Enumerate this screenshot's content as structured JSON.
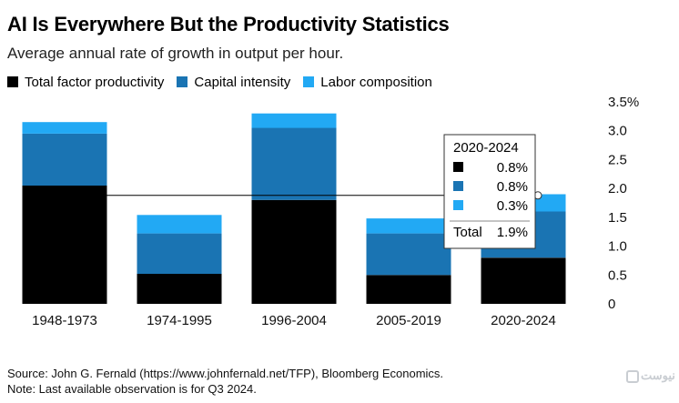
{
  "header": {
    "title": "AI Is Everywhere But the Productivity Statistics",
    "subtitle": "Average annual rate of growth in output per hour."
  },
  "colors": {
    "tfp": "#000000",
    "capital": "#1a74b3",
    "labor": "#22a9f4",
    "refline": "#000000"
  },
  "chart_data": {
    "type": "bar",
    "stacked": true,
    "categories": [
      "1948-1973",
      "1974-1995",
      "1996-2004",
      "2005-2019",
      "2020-2024"
    ],
    "series": [
      {
        "name": "Total factor productivity",
        "values": [
          2.05,
          0.52,
          1.8,
          0.5,
          0.8
        ]
      },
      {
        "name": "Capital intensity",
        "values": [
          0.9,
          0.7,
          1.25,
          0.72,
          0.8
        ]
      },
      {
        "name": "Labor composition",
        "values": [
          0.2,
          0.32,
          0.25,
          0.26,
          0.3
        ]
      }
    ],
    "ylim": [
      0,
      3.5
    ],
    "yticks": [
      "0",
      "0.5",
      "1.0",
      "1.5",
      "2.0",
      "2.5",
      "3.0",
      "3.5%"
    ],
    "ytick_values": [
      0,
      0.5,
      1.0,
      1.5,
      2.0,
      2.5,
      3.0,
      3.5
    ],
    "reference_line": 1.88,
    "legend_position": "top-left",
    "grid": false
  },
  "tooltip": {
    "title": "2020-2024",
    "rows": [
      {
        "value": "0.8%"
      },
      {
        "value": "0.8%"
      },
      {
        "value": "0.3%"
      }
    ],
    "total_label": "Total",
    "total_value": "1.9%"
  },
  "footer": {
    "source": "Source: John G. Fernald (https://www.johnfernald.net/TFP), Bloomberg Economics.",
    "note": "Note: Last available observation is for Q3 2024."
  },
  "watermark": "نیوست"
}
